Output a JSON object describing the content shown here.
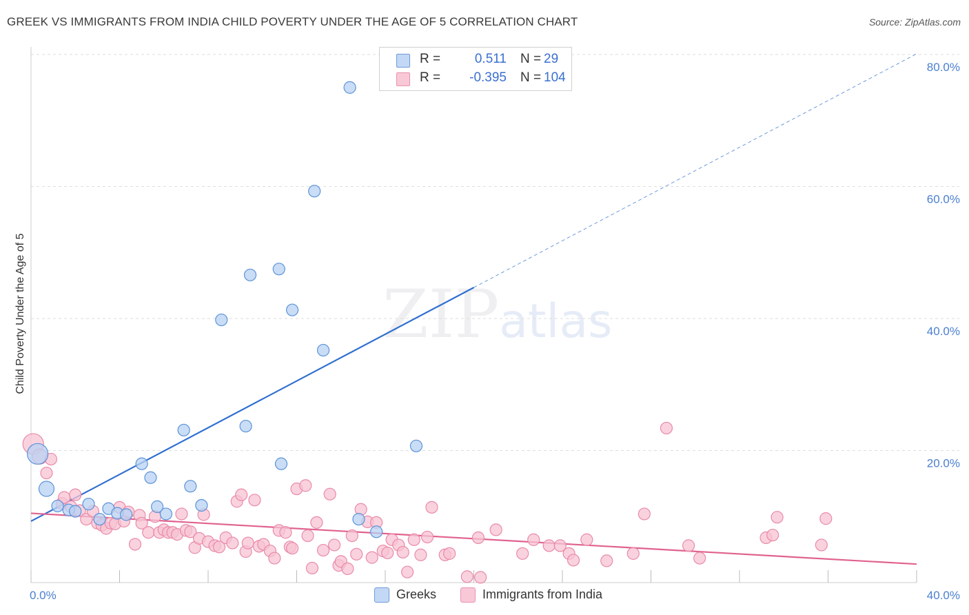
{
  "title": "GREEK VS IMMIGRANTS FROM INDIA CHILD POVERTY UNDER THE AGE OF 5 CORRELATION CHART",
  "source": "Source: ZipAtlas.com",
  "watermark": {
    "zip": "ZIP",
    "atlas": "atlas"
  },
  "colors": {
    "greek_fill": "#b8d2f3",
    "greek_stroke": "#5b93d8",
    "greek_line": "#2f6fd0",
    "india_fill": "#f7c3d3",
    "india_stroke": "#e98aa8",
    "india_line": "#e0628f",
    "tick_text": "#4a7fd0",
    "grid": "#dddddd"
  },
  "legend": {
    "rows": [
      {
        "r_label": "R =",
        "r_value": "0.511",
        "n_label": "N =",
        "n_value": "29"
      },
      {
        "r_label": "R =",
        "r_value": "-0.395",
        "n_label": "N =",
        "n_value": "104"
      }
    ]
  },
  "bottom_legend": {
    "greeks": "Greeks",
    "india": "Immigrants from India"
  },
  "chart_data": {
    "type": "scatter",
    "title": "GREEK VS IMMIGRANTS FROM INDIA CHILD POVERTY UNDER THE AGE OF 5 CORRELATION CHART",
    "xlabel": "",
    "ylabel": "Child Poverty Under the Age of 5",
    "xlim": [
      0,
      40
    ],
    "ylim": [
      0,
      80
    ],
    "x_tick_labels": [
      "0.0%",
      "40.0%"
    ],
    "y_tick_labels": [
      "20.0%",
      "40.0%",
      "60.0%",
      "80.0%"
    ],
    "y_ticks": [
      20,
      40,
      60,
      80
    ],
    "grid": true,
    "legend_position": "top-center",
    "series": [
      {
        "name": "Greeks",
        "R": 0.511,
        "N": 29,
        "trend": {
          "x0": 0,
          "y0": 9.3,
          "x1": 20.0,
          "y1": 44.7,
          "dashed_to_x": 40,
          "dashed_to_y": 80.1
        },
        "points": [
          [
            0.3,
            19.5,
            "lg"
          ],
          [
            0.7,
            14.2,
            "md"
          ],
          [
            1.2,
            11.6,
            "sm"
          ],
          [
            1.7,
            11.0,
            "sm"
          ],
          [
            2.0,
            10.8,
            "sm"
          ],
          [
            2.6,
            11.9,
            "sm"
          ],
          [
            3.1,
            9.6,
            "sm"
          ],
          [
            3.5,
            11.2,
            "sm"
          ],
          [
            3.9,
            10.5,
            "sm"
          ],
          [
            4.3,
            10.3,
            "sm"
          ],
          [
            5.0,
            18.0,
            "sm"
          ],
          [
            5.4,
            15.9,
            "sm"
          ],
          [
            5.7,
            11.5,
            "sm"
          ],
          [
            6.1,
            10.4,
            "sm"
          ],
          [
            6.9,
            23.1,
            "sm"
          ],
          [
            7.2,
            14.6,
            "sm"
          ],
          [
            7.7,
            11.7,
            "sm"
          ],
          [
            8.6,
            39.8,
            "sm"
          ],
          [
            9.7,
            23.7,
            "sm"
          ],
          [
            9.9,
            46.6,
            "sm"
          ],
          [
            11.2,
            47.5,
            "sm"
          ],
          [
            11.3,
            18.0,
            "sm"
          ],
          [
            11.8,
            41.3,
            "sm"
          ],
          [
            12.8,
            59.3,
            "sm"
          ],
          [
            13.2,
            35.2,
            "sm"
          ],
          [
            14.4,
            75.0,
            "sm"
          ],
          [
            14.8,
            9.6,
            "sm"
          ],
          [
            15.6,
            7.7,
            "sm"
          ],
          [
            17.4,
            20.7,
            "sm"
          ]
        ]
      },
      {
        "name": "Immigrants from India",
        "R": -0.395,
        "N": 104,
        "trend": {
          "x0": 0,
          "y0": 10.5,
          "x1": 40,
          "y1": 2.8
        },
        "points": [
          [
            0.1,
            21.0,
            "lg"
          ],
          [
            0.4,
            19.1,
            "md"
          ],
          [
            0.7,
            16.6,
            "sm"
          ],
          [
            0.9,
            18.7,
            "sm"
          ],
          [
            1.4,
            12.0,
            "sm"
          ],
          [
            1.5,
            12.9,
            "sm"
          ],
          [
            1.8,
            11.5,
            "sm"
          ],
          [
            2.0,
            13.3,
            "sm"
          ],
          [
            2.2,
            10.9,
            "sm"
          ],
          [
            2.5,
            9.6,
            "sm"
          ],
          [
            2.8,
            10.8,
            "sm"
          ],
          [
            3.0,
            9.0,
            "sm"
          ],
          [
            3.2,
            8.7,
            "sm"
          ],
          [
            3.4,
            8.2,
            "sm"
          ],
          [
            3.6,
            9.0,
            "sm"
          ],
          [
            3.8,
            8.9,
            "sm"
          ],
          [
            4.0,
            11.4,
            "sm"
          ],
          [
            4.2,
            9.3,
            "sm"
          ],
          [
            4.4,
            10.7,
            "sm"
          ],
          [
            4.7,
            5.8,
            "sm"
          ],
          [
            4.9,
            10.2,
            "sm"
          ],
          [
            5.0,
            9.0,
            "sm"
          ],
          [
            5.3,
            7.6,
            "sm"
          ],
          [
            5.6,
            10.0,
            "sm"
          ],
          [
            5.8,
            7.6,
            "sm"
          ],
          [
            6.0,
            8.0,
            "sm"
          ],
          [
            6.2,
            7.6,
            "sm"
          ],
          [
            6.4,
            7.6,
            "sm"
          ],
          [
            6.6,
            7.3,
            "sm"
          ],
          [
            6.8,
            10.4,
            "sm"
          ],
          [
            7.0,
            7.9,
            "sm"
          ],
          [
            7.2,
            7.7,
            "sm"
          ],
          [
            7.4,
            5.3,
            "sm"
          ],
          [
            7.6,
            6.7,
            "sm"
          ],
          [
            7.8,
            10.3,
            "sm"
          ],
          [
            8.0,
            6.2,
            "sm"
          ],
          [
            8.3,
            5.6,
            "sm"
          ],
          [
            8.5,
            5.4,
            "sm"
          ],
          [
            8.8,
            6.8,
            "sm"
          ],
          [
            9.1,
            6.0,
            "sm"
          ],
          [
            9.3,
            12.3,
            "sm"
          ],
          [
            9.5,
            13.3,
            "sm"
          ],
          [
            9.7,
            4.7,
            "sm"
          ],
          [
            9.8,
            6.0,
            "sm"
          ],
          [
            10.1,
            12.5,
            "sm"
          ],
          [
            10.3,
            5.5,
            "sm"
          ],
          [
            10.5,
            5.8,
            "sm"
          ],
          [
            10.8,
            4.8,
            "sm"
          ],
          [
            11.0,
            3.7,
            "sm"
          ],
          [
            11.2,
            7.9,
            "sm"
          ],
          [
            11.5,
            7.6,
            "sm"
          ],
          [
            11.7,
            5.4,
            "sm"
          ],
          [
            11.8,
            5.2,
            "sm"
          ],
          [
            12.0,
            14.2,
            "sm"
          ],
          [
            12.4,
            14.7,
            "sm"
          ],
          [
            12.5,
            7.1,
            "sm"
          ],
          [
            12.7,
            2.2,
            "sm"
          ],
          [
            12.9,
            9.1,
            "sm"
          ],
          [
            13.2,
            4.9,
            "sm"
          ],
          [
            13.5,
            13.4,
            "sm"
          ],
          [
            13.7,
            5.7,
            "sm"
          ],
          [
            13.9,
            2.6,
            "sm"
          ],
          [
            14.0,
            3.2,
            "sm"
          ],
          [
            14.3,
            2.1,
            "sm"
          ],
          [
            14.5,
            7.1,
            "sm"
          ],
          [
            14.7,
            4.3,
            "sm"
          ],
          [
            14.9,
            11.1,
            "sm"
          ],
          [
            15.2,
            9.2,
            "sm"
          ],
          [
            15.4,
            3.8,
            "sm"
          ],
          [
            15.6,
            9.1,
            "sm"
          ],
          [
            15.9,
            4.8,
            "sm"
          ],
          [
            16.1,
            4.5,
            "sm"
          ],
          [
            16.3,
            6.5,
            "sm"
          ],
          [
            16.6,
            5.7,
            "sm"
          ],
          [
            16.8,
            4.6,
            "sm"
          ],
          [
            17.0,
            1.6,
            "sm"
          ],
          [
            17.3,
            6.5,
            "sm"
          ],
          [
            17.6,
            4.2,
            "sm"
          ],
          [
            17.9,
            6.9,
            "sm"
          ],
          [
            18.1,
            11.4,
            "sm"
          ],
          [
            18.7,
            4.2,
            "sm"
          ],
          [
            18.9,
            4.4,
            "sm"
          ],
          [
            19.7,
            0.9,
            "sm"
          ],
          [
            20.2,
            6.8,
            "sm"
          ],
          [
            20.3,
            0.8,
            "sm"
          ],
          [
            21.0,
            8.0,
            "sm"
          ],
          [
            22.2,
            4.4,
            "sm"
          ],
          [
            22.7,
            6.5,
            "sm"
          ],
          [
            23.4,
            5.6,
            "sm"
          ],
          [
            23.9,
            5.6,
            "sm"
          ],
          [
            24.3,
            4.4,
            "sm"
          ],
          [
            24.5,
            3.4,
            "sm"
          ],
          [
            25.1,
            6.5,
            "sm"
          ],
          [
            26.0,
            3.3,
            "sm"
          ],
          [
            27.2,
            4.4,
            "sm"
          ],
          [
            27.7,
            10.4,
            "sm"
          ],
          [
            28.7,
            23.4,
            "sm"
          ],
          [
            29.7,
            5.6,
            "sm"
          ],
          [
            30.2,
            3.7,
            "sm"
          ],
          [
            33.2,
            6.8,
            "sm"
          ],
          [
            33.5,
            7.2,
            "sm"
          ],
          [
            33.7,
            9.9,
            "sm"
          ],
          [
            35.7,
            5.7,
            "sm"
          ],
          [
            35.9,
            9.7,
            "sm"
          ]
        ]
      }
    ]
  }
}
